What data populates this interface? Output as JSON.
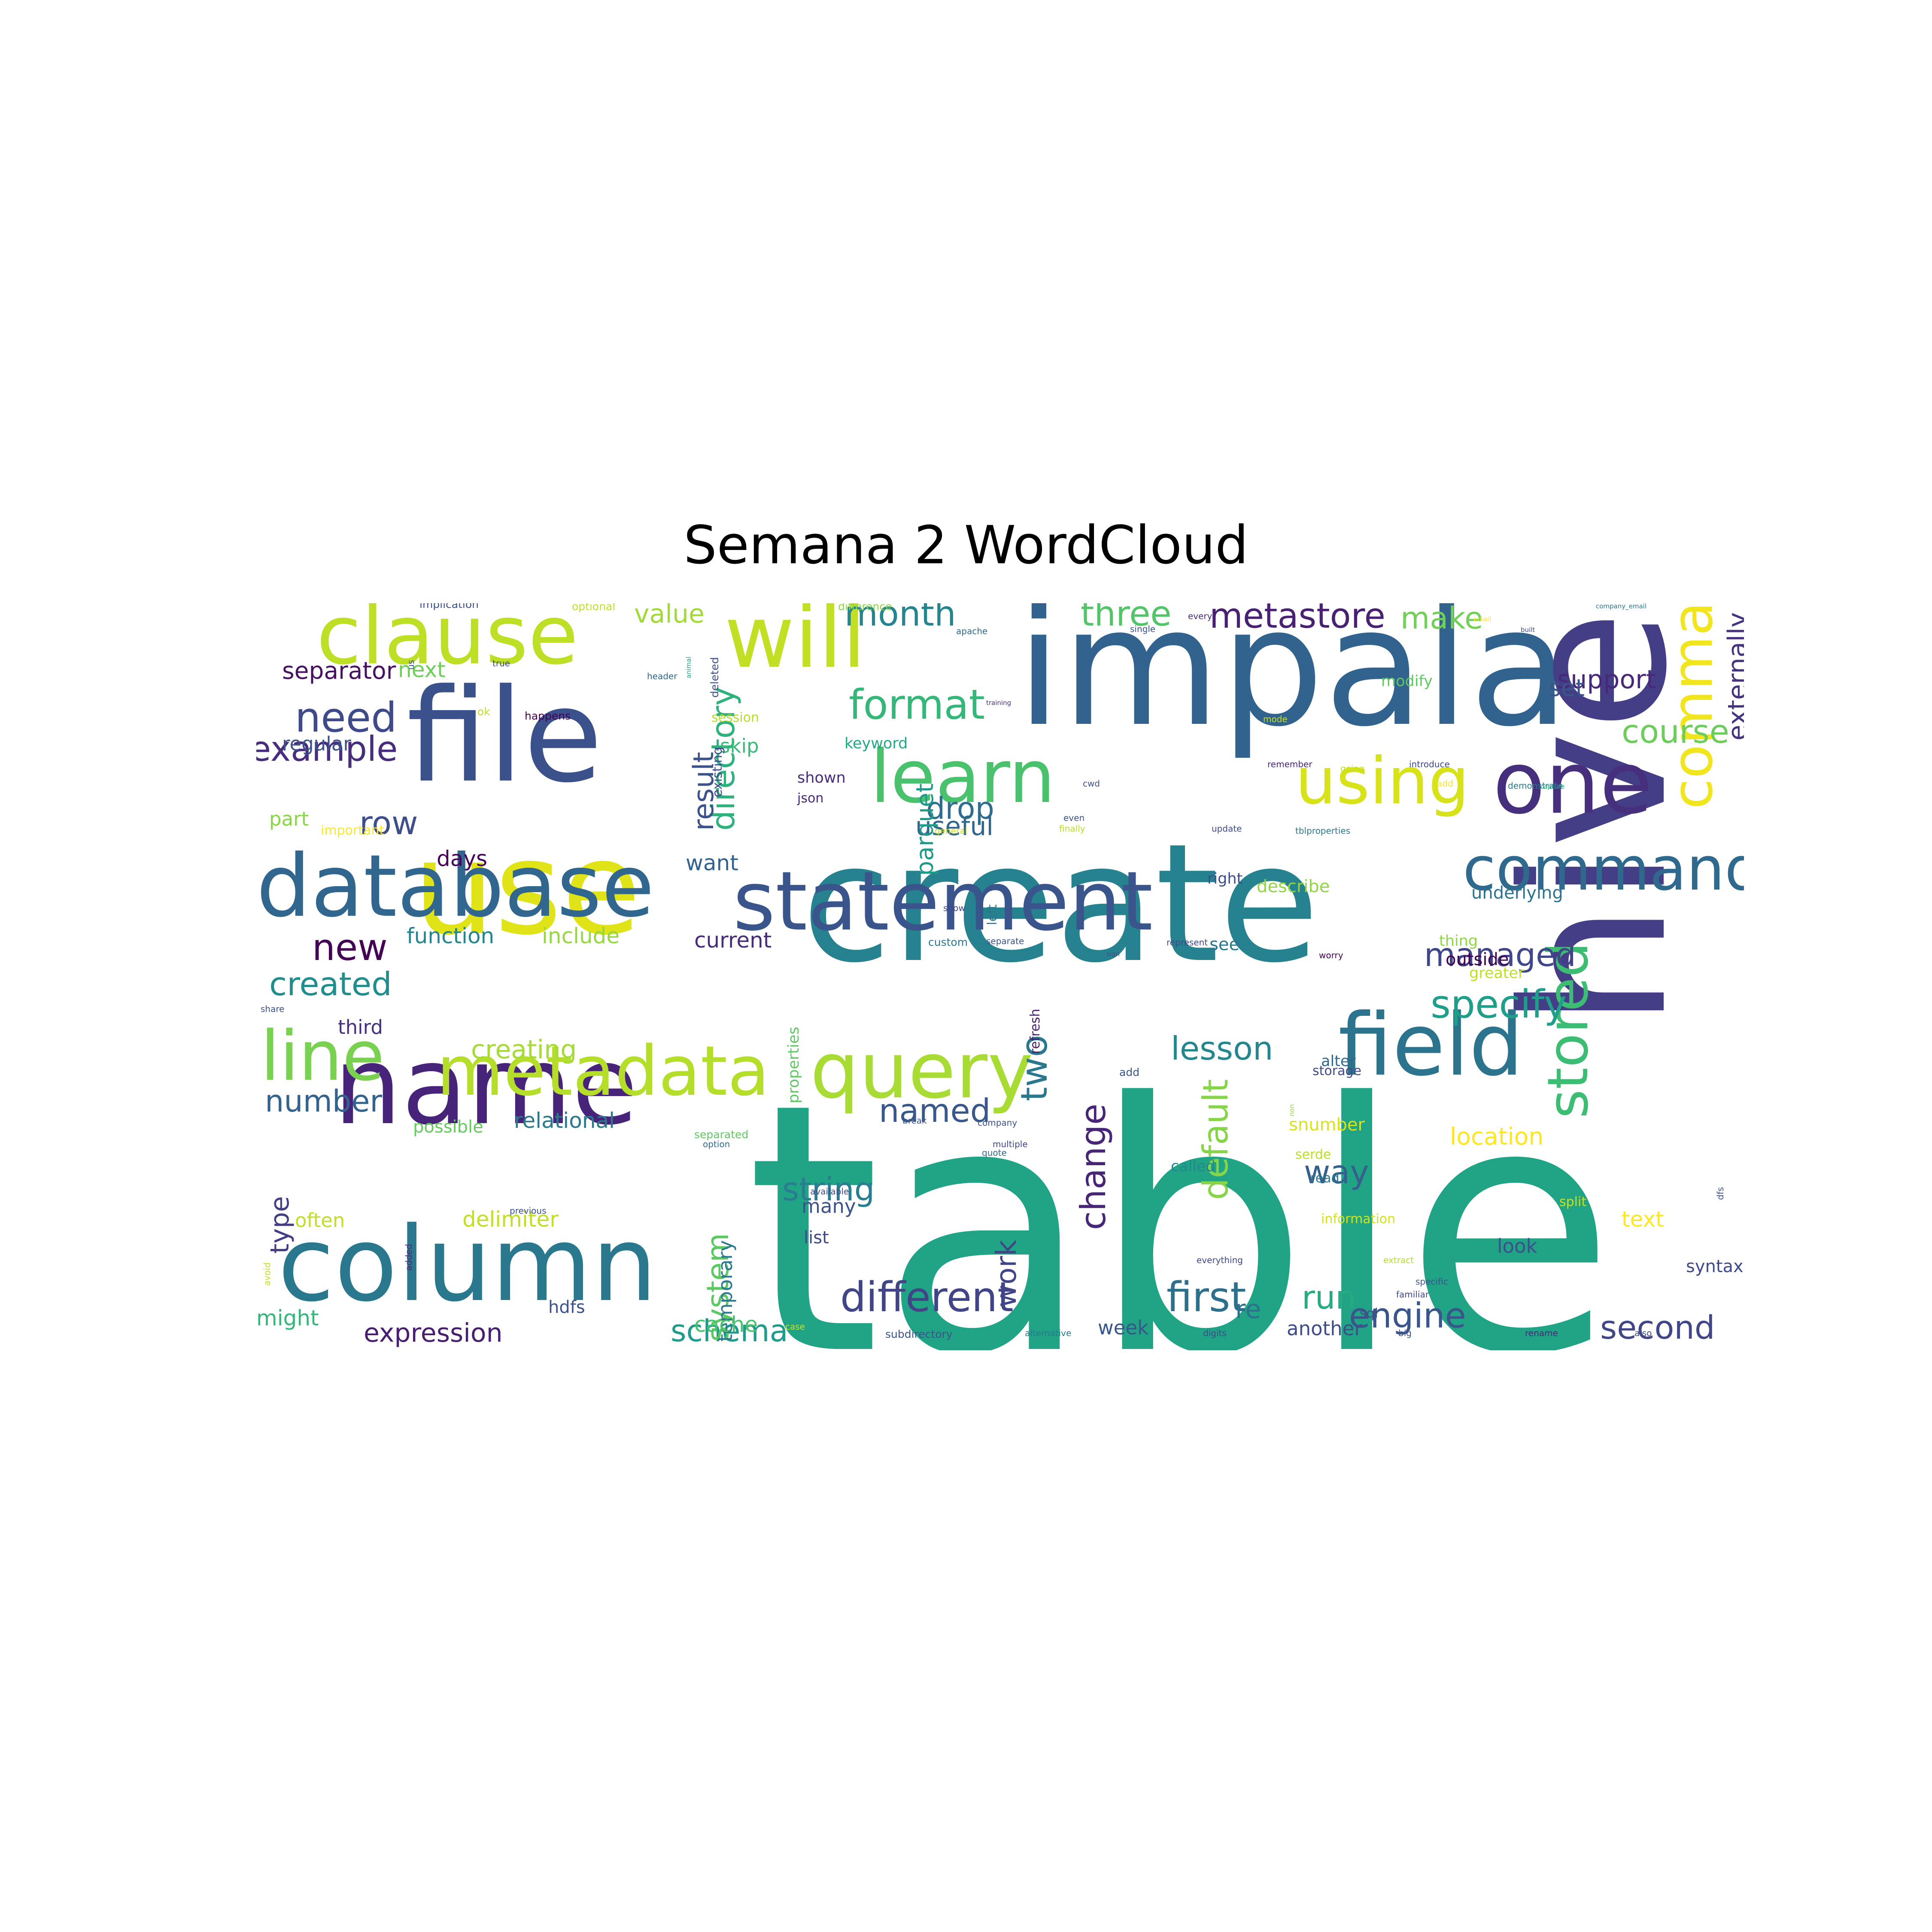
{
  "title": "Semana 2 WordCloud",
  "colors": {
    "background": "#ffffff",
    "title": "#000000"
  },
  "words": [
    {
      "text": "table",
      "color": "#21a386"
    },
    {
      "text": "create",
      "color": "#26828e"
    },
    {
      "text": "impala",
      "color": "#31638e"
    },
    {
      "text": "file",
      "color": "#3b518b"
    },
    {
      "text": "use",
      "color": "#dfe318"
    },
    {
      "text": "statement",
      "color": "#3a548c"
    },
    {
      "text": "hive",
      "color": "#433e85"
    },
    {
      "text": "name",
      "color": "#48237a"
    },
    {
      "text": "column",
      "color": "#2a788e"
    },
    {
      "text": "database",
      "color": "#31668e"
    },
    {
      "text": "clause",
      "color": "#bddf26"
    },
    {
      "text": "will",
      "color": "#c2df23"
    },
    {
      "text": "one",
      "color": "#46307e"
    },
    {
      "text": "command",
      "color": "#30698e"
    },
    {
      "text": "field",
      "color": "#2c738e"
    },
    {
      "text": "query",
      "color": "#a8db34"
    },
    {
      "text": "metadata",
      "color": "#b5de2b"
    },
    {
      "text": "line",
      "color": "#7ad151"
    },
    {
      "text": "learn",
      "color": "#4ac16d"
    },
    {
      "text": "using",
      "color": "#d8e219"
    },
    {
      "text": "comma",
      "color": "#f1e51d"
    },
    {
      "text": "stored",
      "color": "#3dbc74"
    },
    {
      "text": "different",
      "color": "#414487"
    },
    {
      "text": "first",
      "color": "#2d708e"
    },
    {
      "text": "example",
      "color": "#472d7b"
    },
    {
      "text": "format",
      "color": "#35b779"
    },
    {
      "text": "directory",
      "color": "#2db27d"
    },
    {
      "text": "specify",
      "color": "#1f9e89"
    },
    {
      "text": "need",
      "color": "#3e4a89"
    },
    {
      "text": "metastore",
      "color": "#482173"
    },
    {
      "text": "three",
      "color": "#52c569"
    },
    {
      "text": "month",
      "color": "#25858e"
    },
    {
      "text": "result",
      "color": "#3b528b"
    },
    {
      "text": "created",
      "color": "#228d8d"
    },
    {
      "text": "new",
      "color": "#440154"
    },
    {
      "text": "default",
      "color": "#86d549"
    },
    {
      "text": "change",
      "color": "#482677"
    },
    {
      "text": "two",
      "color": "#2a778e"
    },
    {
      "text": "named",
      "color": "#38588c"
    },
    {
      "text": "lesson",
      "color": "#24868e"
    },
    {
      "text": "course",
      "color": "#6ccd5a"
    },
    {
      "text": "managed",
      "color": "#3f4788"
    },
    {
      "text": "engine",
      "color": "#39558c"
    },
    {
      "text": "second",
      "color": "#404688"
    },
    {
      "text": "string",
      "color": "#287d8e"
    },
    {
      "text": "run",
      "color": "#25ab82"
    },
    {
      "text": "way",
      "color": "#355f8d"
    },
    {
      "text": "number",
      "color": "#33638d"
    },
    {
      "text": "row",
      "color": "#3d4e8a"
    },
    {
      "text": "type",
      "color": "#433d84"
    },
    {
      "text": "work",
      "color": "#404588"
    },
    {
      "text": "schema",
      "color": "#1e9b8a"
    },
    {
      "text": "drop",
      "color": "#2e6d8e"
    },
    {
      "text": "make",
      "color": "#73d056"
    },
    {
      "text": "system",
      "color": "#5ec962"
    },
    {
      "text": "character",
      "color": "#93d741"
    },
    {
      "text": "location",
      "color": "#fde725"
    },
    {
      "text": "expression",
      "color": "#481f70"
    },
    {
      "text": "hdfs",
      "color": "#3b528b"
    },
    {
      "text": "keyword",
      "color": "#22a884"
    },
    {
      "text": "separator",
      "color": "#471063"
    },
    {
      "text": "useful",
      "color": "#31668e"
    },
    {
      "text": "creating",
      "color": "#a5db36"
    },
    {
      "text": "support",
      "color": "#482878"
    },
    {
      "text": "external",
      "color": "#c8e020"
    },
    {
      "text": "value",
      "color": "#a2da37"
    },
    {
      "text": "set",
      "color": "#3a548c"
    },
    {
      "text": "externally",
      "color": "#46337f"
    },
    {
      "text": "skip",
      "color": "#3aba76"
    },
    {
      "text": "regular",
      "color": "#3b528b"
    },
    {
      "text": "part",
      "color": "#8bd646"
    },
    {
      "text": "days",
      "color": "#450559"
    },
    {
      "text": "want",
      "color": "#33638d"
    },
    {
      "text": "next",
      "color": "#6ece58"
    },
    {
      "text": "current",
      "color": "#472c7a"
    },
    {
      "text": "function",
      "color": "#25848e"
    },
    {
      "text": "include",
      "color": "#95d840"
    },
    {
      "text": "relational",
      "color": "#2a778e"
    },
    {
      "text": "possible",
      "color": "#65cb5e"
    },
    {
      "text": "third",
      "color": "#46307e"
    },
    {
      "text": "might",
      "color": "#35b779"
    },
    {
      "text": "often",
      "color": "#c0df25"
    },
    {
      "text": "delimiter",
      "color": "#c2df23"
    },
    {
      "text": "temporary",
      "color": "#2a778e"
    },
    {
      "text": "parquet",
      "color": "#1f9a8a"
    },
    {
      "text": "properties",
      "color": "#5ec962"
    },
    {
      "text": "many",
      "color": "#3b528b"
    },
    {
      "text": "list",
      "color": "#3e4989"
    },
    {
      "text": "cache",
      "color": "#4ac16d"
    },
    {
      "text": "re",
      "color": "#2c728e"
    },
    {
      "text": "week",
      "color": "#39568c"
    },
    {
      "text": "another",
      "color": "#3d4d8a"
    },
    {
      "text": "sql",
      "color": "#3b518b"
    },
    {
      "text": "text",
      "color": "#fde725"
    },
    {
      "text": "look",
      "color": "#3c508b"
    },
    {
      "text": "syntax",
      "color": "#3e4a89"
    },
    {
      "text": "serde",
      "color": "#b8de29"
    },
    {
      "text": "snumber",
      "color": "#dae319"
    },
    {
      "text": "sign",
      "color": "#3b528b"
    },
    {
      "text": "outside",
      "color": "#440154"
    },
    {
      "text": "describe",
      "color": "#90d743"
    },
    {
      "text": "alter",
      "color": "#31688e"
    },
    {
      "text": "called",
      "color": "#23898e"
    },
    {
      "text": "information",
      "color": "#d2e21b"
    },
    {
      "text": "underlying",
      "color": "#2c728e"
    },
    {
      "text": "see",
      "color": "#2a788e"
    },
    {
      "text": "non",
      "color": "#95d840"
    },
    {
      "text": "left",
      "color": "#2a778e"
    },
    {
      "text": "right",
      "color": "#3d4d8a"
    },
    {
      "text": "refresh",
      "color": "#481f70"
    },
    {
      "text": "add",
      "color": "#3b528b"
    },
    {
      "text": "modify",
      "color": "#5ec962"
    },
    {
      "text": "greater",
      "color": "#bddf26"
    },
    {
      "text": "thing",
      "color": "#8fd744"
    },
    {
      "text": "read",
      "color": "#2a788e"
    },
    {
      "text": "split",
      "color": "#c8e020"
    },
    {
      "text": "shown",
      "color": "#472d7b"
    },
    {
      "text": "json",
      "color": "#482878"
    },
    {
      "text": "storage",
      "color": "#3e4a89"
    },
    {
      "text": "session",
      "color": "#b5de2b"
    },
    {
      "text": "existing",
      "color": "#3e4989"
    },
    {
      "text": "implication",
      "color": "#3b528b"
    },
    {
      "text": "optional",
      "color": "#c2df23"
    },
    {
      "text": "difference",
      "color": "#8fd744"
    },
    {
      "text": "apache",
      "color": "#31688e"
    },
    {
      "text": "single",
      "color": "#3b528b"
    },
    {
      "text": "every",
      "color": "#472d7b"
    },
    {
      "text": "email",
      "color": "#fde725"
    },
    {
      "text": "built",
      "color": "#3e4989"
    },
    {
      "text": "company_email",
      "color": "#2a788e"
    },
    {
      "text": "happens",
      "color": "#440154"
    },
    {
      "text": "header",
      "color": "#31688e"
    },
    {
      "text": "animal",
      "color": "#22a884"
    },
    {
      "text": "training",
      "color": "#46337f"
    },
    {
      "text": "remember",
      "color": "#482878"
    },
    {
      "text": "going",
      "color": "#c2df23"
    },
    {
      "text": "introduce",
      "color": "#3e4989"
    },
    {
      "text": "demonstrate",
      "color": "#2a788e"
    },
    {
      "text": "capture",
      "color": "#22a884"
    },
    {
      "text": "general",
      "color": "#c8e020"
    },
    {
      "text": "finally",
      "color": "#b5de2b"
    },
    {
      "text": "update",
      "color": "#3e4a89"
    },
    {
      "text": "tblproperties",
      "color": "#2a788e"
    },
    {
      "text": "important",
      "color": "#fde725"
    },
    {
      "text": "deleted",
      "color": "#3b528b"
    },
    {
      "text": "show",
      "color": "#3e4989"
    },
    {
      "text": "custom",
      "color": "#2a778e"
    },
    {
      "text": "separate",
      "color": "#3b528b"
    },
    {
      "text": "represent",
      "color": "#3e4989"
    },
    {
      "text": "worry",
      "color": "#440154"
    },
    {
      "text": "share",
      "color": "#3b528b"
    },
    {
      "text": "separated",
      "color": "#5ec962"
    },
    {
      "text": "option",
      "color": "#31688e"
    },
    {
      "text": "break",
      "color": "#3b528b"
    },
    {
      "text": "multiple",
      "color": "#3e4a89"
    },
    {
      "text": "company",
      "color": "#3b528b"
    },
    {
      "text": "quote",
      "color": "#31688e"
    },
    {
      "text": "available",
      "color": "#3e4989"
    },
    {
      "text": "previous",
      "color": "#3b528b"
    },
    {
      "text": "added",
      "color": "#482878"
    },
    {
      "text": "avoid",
      "color": "#c2df23"
    },
    {
      "text": "everything",
      "color": "#3e4a89"
    },
    {
      "text": "extract",
      "color": "#b5de2b"
    },
    {
      "text": "specific",
      "color": "#3b528b"
    },
    {
      "text": "familiar",
      "color": "#3e4989"
    },
    {
      "text": "case",
      "color": "#c8e020"
    },
    {
      "text": "subdirectory",
      "color": "#3b528b"
    },
    {
      "text": "alternative",
      "color": "#2a788e"
    },
    {
      "text": "digits",
      "color": "#3e4989"
    },
    {
      "text": "big",
      "color": "#3b528b"
    },
    {
      "text": "rename",
      "color": "#482878"
    },
    {
      "text": "also",
      "color": "#3e4989"
    },
    {
      "text": "dfs",
      "color": "#3b528b"
    },
    {
      "text": "ok",
      "color": "#c2df23"
    },
    {
      "text": "us",
      "color": "#3b528b"
    },
    {
      "text": "true",
      "color": "#3e4989"
    },
    {
      "text": "even",
      "color": "#3b528b"
    },
    {
      "text": "add",
      "color": "#fde725"
    },
    {
      "text": "mode",
      "color": "#c8e020"
    },
    {
      "text": "cwd",
      "color": "#3b528b"
    }
  ]
}
